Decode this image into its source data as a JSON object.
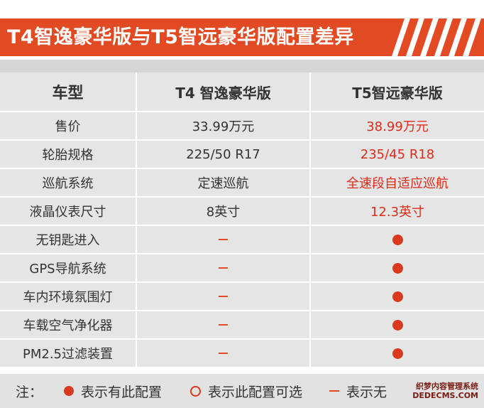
{
  "title": "T4智逸豪华版与T5智远豪华版配置差异",
  "headers": [
    "车型",
    "T4 智逸豪华版",
    "T5智远豪华版"
  ],
  "rows": [
    {
      "label": "售价",
      "t4": "33.99万元",
      "t5": "38.99万元",
      "t4_type": "text",
      "t5_type": "text"
    },
    {
      "label": "轮胎规格",
      "t4": "225/50 R17",
      "t5": "235/45 R18",
      "t4_type": "text",
      "t5_type": "text"
    },
    {
      "label": "巡航系统",
      "t4": "定速巡航",
      "t5": "全速段自适应巡航",
      "t4_type": "text",
      "t5_type": "text"
    },
    {
      "label": "液晶仪表尺寸",
      "t4": "8英寸",
      "t5": "12.3英寸",
      "t4_type": "text",
      "t5_type": "text"
    },
    {
      "label": "无钥匙进入",
      "t4": "",
      "t5": "",
      "t4_type": "dash",
      "t5_type": "dot"
    },
    {
      "label": "GPS导航系统",
      "t4": "",
      "t5": "",
      "t4_type": "dash",
      "t5_type": "dot"
    },
    {
      "label": "车内环境氛围灯",
      "t4": "",
      "t5": "",
      "t4_type": "dash",
      "t5_type": "dot"
    },
    {
      "label": "车载空气净化器",
      "t4": "",
      "t5": "",
      "t4_type": "dash",
      "t5_type": "dot"
    },
    {
      "label": "PM2.5过滤装置",
      "t4": "",
      "t5": "",
      "t4_type": "dash",
      "t5_type": "dot"
    }
  ],
  "legend": {
    "note": "注：",
    "standard": "表示有此配置",
    "optional": "表示此配置可选",
    "none": "表示无"
  },
  "watermark": {
    "line1": "织梦内容管理系统",
    "line2": "DEDECMS.COM"
  },
  "colors": {
    "accent": "#e14a23",
    "highlight": "#e02a1a",
    "cell_bg": "#e5e5e5"
  }
}
